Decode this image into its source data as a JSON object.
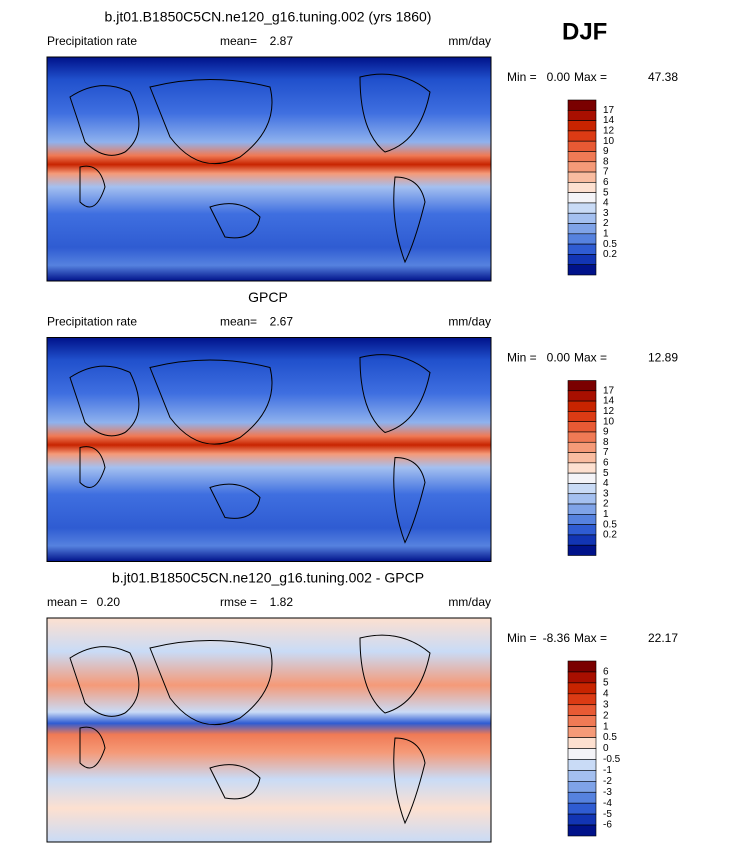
{
  "season": "DJF",
  "panels": [
    {
      "title": "b.jt01.B1850C5CN.ne120_g16.tuning.002 (yrs 1860)",
      "left_label": "Precipitation rate",
      "stats": [
        {
          "label": "mean=",
          "value": "2.87"
        }
      ],
      "units": "mm/day",
      "min_label": "Min =",
      "min_value": "0.00",
      "max_label": "Max =",
      "max_value": "47.38",
      "colorbar": {
        "labels": [
          "17",
          "14",
          "12",
          "10",
          "9",
          "8",
          "7",
          "6",
          "5",
          "4",
          "3",
          "2",
          "1",
          "0.5",
          "0.2"
        ],
        "colors": [
          "#7a0000",
          "#a80f00",
          "#c82400",
          "#dc3b14",
          "#e85a34",
          "#f07a55",
          "#f59a78",
          "#f9bca0",
          "#fde0d0",
          "#f4f4f8",
          "#c9dbf6",
          "#a4c0f0",
          "#7fa3e8",
          "#5682df",
          "#2f5cd2",
          "#1235b4",
          "#00128a"
        ]
      }
    },
    {
      "title": "GPCP",
      "left_label": "Precipitation rate",
      "stats": [
        {
          "label": "mean=",
          "value": "2.67"
        }
      ],
      "units": "mm/day",
      "min_label": "Min =",
      "min_value": "0.00",
      "max_label": "Max =",
      "max_value": "12.89",
      "colorbar": {
        "labels": [
          "17",
          "14",
          "12",
          "10",
          "9",
          "8",
          "7",
          "6",
          "5",
          "4",
          "3",
          "2",
          "1",
          "0.5",
          "0.2"
        ],
        "colors": [
          "#7a0000",
          "#a80f00",
          "#c82400",
          "#dc3b14",
          "#e85a34",
          "#f07a55",
          "#f59a78",
          "#f9bca0",
          "#fde0d0",
          "#f4f4f8",
          "#c9dbf6",
          "#a4c0f0",
          "#7fa3e8",
          "#5682df",
          "#2f5cd2",
          "#1235b4",
          "#00128a"
        ]
      }
    },
    {
      "title": "b.jt01.B1850C5CN.ne120_g16.tuning.002 - GPCP",
      "stats": [
        {
          "label": "mean =",
          "value": "0.20"
        },
        {
          "label": "rmse =",
          "value": "1.82"
        }
      ],
      "units": "mm/day",
      "min_label": "Min =",
      "min_value": "-8.36",
      "max_label": "Max =",
      "max_value": "22.17",
      "colorbar": {
        "labels": [
          "6",
          "5",
          "4",
          "3",
          "2",
          "1",
          "0.5",
          "0",
          "-0.5",
          "-1",
          "-2",
          "-3",
          "-4",
          "-5",
          "-6"
        ],
        "colors": [
          "#7a0000",
          "#a80f00",
          "#c82400",
          "#dc3b14",
          "#e85a34",
          "#f07a55",
          "#f59a78",
          "#fde0d0",
          "#f4f4f8",
          "#c9dbf6",
          "#a4c0f0",
          "#7fa3e8",
          "#5682df",
          "#2f5cd2",
          "#1235b4",
          "#00128a"
        ]
      }
    }
  ]
}
